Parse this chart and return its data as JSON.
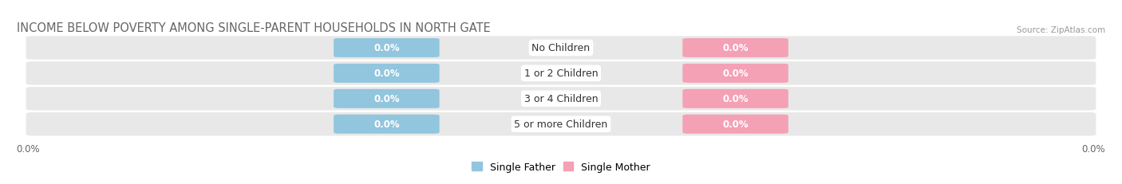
{
  "title": "INCOME BELOW POVERTY AMONG SINGLE-PARENT HOUSEHOLDS IN NORTH GATE",
  "source": "Source: ZipAtlas.com",
  "categories": [
    "No Children",
    "1 or 2 Children",
    "3 or 4 Children",
    "5 or more Children"
  ],
  "father_values": [
    0.0,
    0.0,
    0.0,
    0.0
  ],
  "mother_values": [
    0.0,
    0.0,
    0.0,
    0.0
  ],
  "father_color": "#92C5DE",
  "mother_color": "#F4A0B5",
  "bg_bar_color": "#E8E8E8",
  "bg_bar_color2": "#F0F0F0",
  "legend_father": "Single Father",
  "legend_mother": "Single Mother",
  "axis_label_left": "0.0%",
  "axis_label_right": "0.0%",
  "title_color": "#666666",
  "source_color": "#999999",
  "label_color": "#333333"
}
